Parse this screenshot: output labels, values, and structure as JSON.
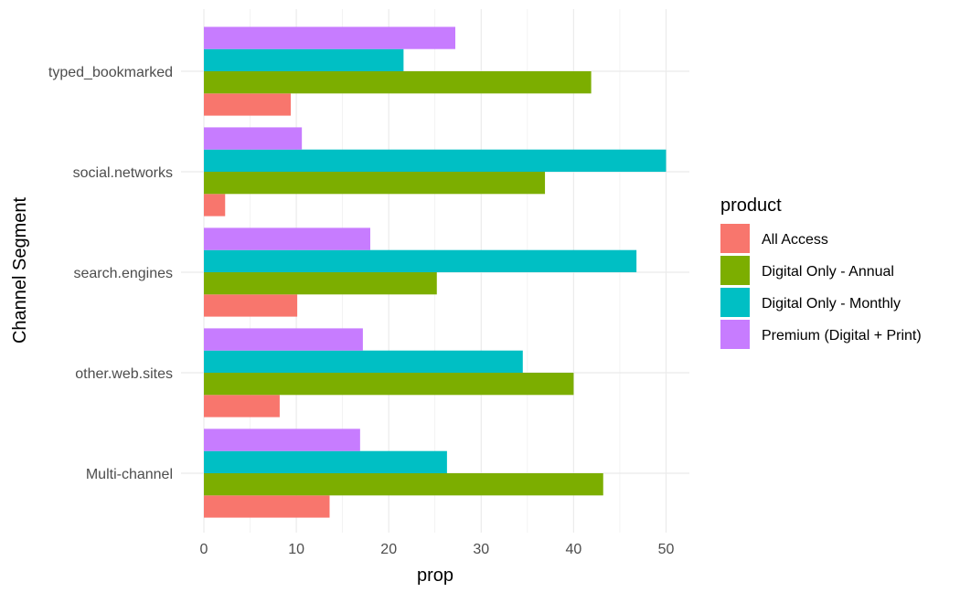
{
  "chart_data": {
    "type": "bar",
    "orientation": "horizontal",
    "xlabel": "prop",
    "ylabel": "Channel Segment",
    "xlim": [
      0,
      52.5
    ],
    "x_ticks": [
      "0",
      "10",
      "20",
      "30",
      "40",
      "50"
    ],
    "categories": [
      "typed_bookmarked",
      "social.networks",
      "search.engines",
      "other.web.sites",
      "Multi-channel"
    ],
    "grid": true,
    "legend": {
      "title": "product",
      "placement": "right"
    },
    "series": [
      {
        "name": "All Access",
        "color": "#F8766D",
        "values": [
          9.4,
          2.3,
          10.1,
          8.2,
          13.6
        ]
      },
      {
        "name": "Digital Only - Annual",
        "color": "#7CAE00",
        "values": [
          41.9,
          36.9,
          25.2,
          40.0,
          43.2
        ]
      },
      {
        "name": "Digital Only - Monthly",
        "color": "#00BFC4",
        "values": [
          21.6,
          50.0,
          46.8,
          34.5,
          26.3
        ]
      },
      {
        "name": "Premium (Digital + Print)",
        "color": "#C77CFF",
        "values": [
          27.2,
          10.6,
          18.0,
          17.2,
          16.9
        ]
      }
    ]
  }
}
